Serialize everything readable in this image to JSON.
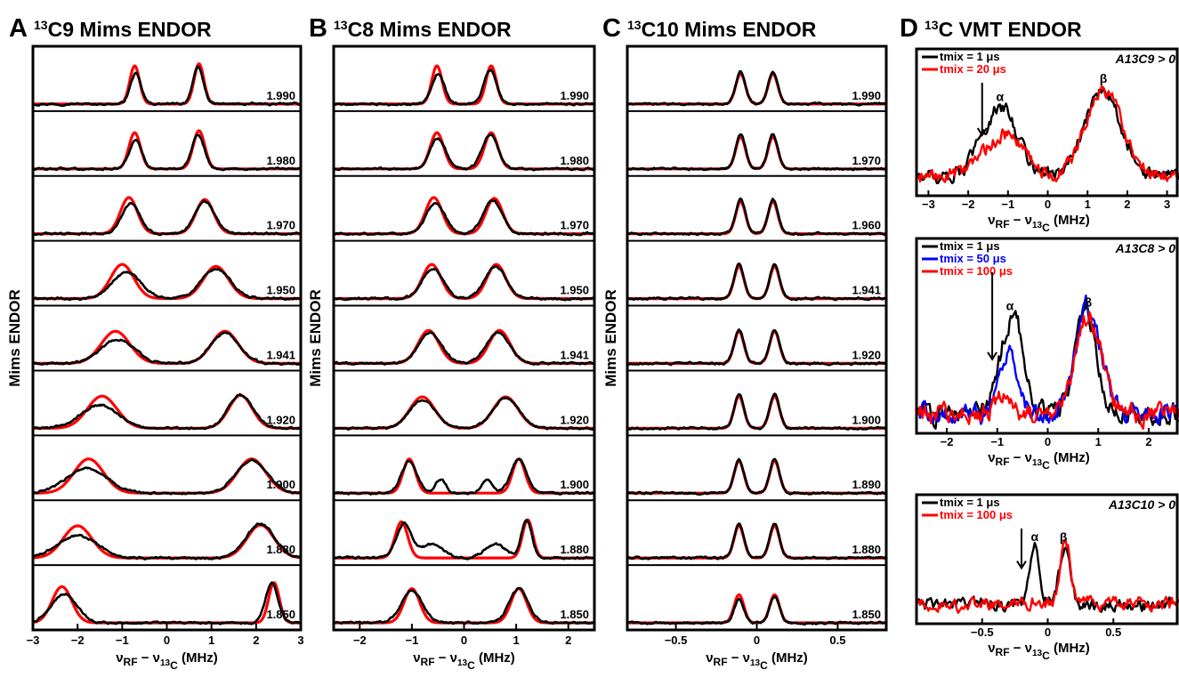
{
  "figure": {
    "colors": {
      "black": "#000000",
      "red": "#ff0000",
      "blue": "#0000ff"
    }
  },
  "chart_data": [
    {
      "type": "line",
      "panel_letter": "A",
      "title": "13C9 Mims ENDOR",
      "xlabel": "νRF − ν13C (MHz)",
      "ylabel": "Mims ENDOR",
      "xlim": [
        -3,
        3
      ],
      "xticks": [
        -3,
        -2,
        -1,
        0,
        1,
        2,
        3
      ],
      "trace_colors": [
        "black",
        "red"
      ],
      "traces": [
        {
          "g": "1.990",
          "peaks": [
            [
              -0.7,
              0.12,
              0.75
            ],
            [
              0.7,
              0.12,
              0.9
            ]
          ],
          "fit": [
            [
              -0.72,
              0.11,
              0.95
            ],
            [
              0.72,
              0.11,
              1.0
            ]
          ]
        },
        {
          "g": "1.980",
          "peaks": [
            [
              -0.7,
              0.14,
              0.7
            ],
            [
              0.7,
              0.14,
              0.85
            ]
          ],
          "fit": [
            [
              -0.72,
              0.13,
              0.9
            ],
            [
              0.72,
              0.13,
              0.95
            ]
          ]
        },
        {
          "g": "1.970",
          "peaks": [
            [
              -0.8,
              0.2,
              0.75
            ],
            [
              0.85,
              0.22,
              0.8
            ]
          ],
          "fit": [
            [
              -0.85,
              0.19,
              0.9
            ],
            [
              0.85,
              0.2,
              0.85
            ]
          ]
        },
        {
          "g": "1.950",
          "peaks": [
            [
              -0.9,
              0.32,
              0.65
            ],
            [
              1.1,
              0.32,
              0.75
            ]
          ],
          "fit": [
            [
              -1.0,
              0.26,
              0.85
            ],
            [
              1.1,
              0.28,
              0.8
            ]
          ]
        },
        {
          "g": "1.941",
          "peaks": [
            [
              -1.1,
              0.38,
              0.6
            ],
            [
              1.3,
              0.32,
              0.75
            ]
          ],
          "fit": [
            [
              -1.15,
              0.32,
              0.8
            ],
            [
              1.3,
              0.3,
              0.8
            ]
          ]
        },
        {
          "g": "1.920",
          "peaks": [
            [
              -1.5,
              0.42,
              0.58
            ],
            [
              1.65,
              0.28,
              0.82
            ]
          ],
          "fit": [
            [
              -1.45,
              0.33,
              0.8
            ],
            [
              1.65,
              0.26,
              0.82
            ]
          ]
        },
        {
          "g": "1.900",
          "peaks": [
            [
              -1.8,
              0.45,
              0.62
            ],
            [
              1.9,
              0.35,
              0.8
            ]
          ],
          "fit": [
            [
              -1.75,
              0.33,
              0.85
            ],
            [
              1.9,
              0.32,
              0.85
            ]
          ]
        },
        {
          "g": "1.880",
          "peaks": [
            [
              -2.0,
              0.45,
              0.55
            ],
            [
              2.1,
              0.32,
              0.85
            ]
          ],
          "fit": [
            [
              -2.0,
              0.32,
              0.8
            ],
            [
              2.1,
              0.3,
              0.82
            ]
          ]
        },
        {
          "g": "1.850",
          "peaks": [
            [
              -2.3,
              0.28,
              0.72
            ],
            [
              2.35,
              0.14,
              1.0
            ]
          ],
          "fit": [
            [
              -2.35,
              0.22,
              0.9
            ],
            [
              2.4,
              0.12,
              1.0
            ]
          ]
        }
      ]
    },
    {
      "type": "line",
      "panel_letter": "B",
      "title": "13C8 Mims ENDOR",
      "xlabel": "νRF − ν13C (MHz)",
      "ylabel": "Mims ENDOR",
      "xlim": [
        -2.5,
        2.5
      ],
      "xticks": [
        -2,
        -1,
        0,
        1,
        2
      ],
      "trace_colors": [
        "black",
        "red"
      ],
      "traces": [
        {
          "g": "1.990",
          "peaks": [
            [
              -0.5,
              0.12,
              0.75
            ],
            [
              0.5,
              0.12,
              0.85
            ]
          ],
          "fit": [
            [
              -0.52,
              0.1,
              0.95
            ],
            [
              0.52,
              0.1,
              0.95
            ]
          ]
        },
        {
          "g": "1.980",
          "peaks": [
            [
              -0.5,
              0.15,
              0.75
            ],
            [
              0.5,
              0.15,
              0.85
            ]
          ],
          "fit": [
            [
              -0.52,
              0.13,
              0.9
            ],
            [
              0.52,
              0.13,
              0.9
            ]
          ]
        },
        {
          "g": "1.970",
          "peaks": [
            [
              -0.55,
              0.18,
              0.75
            ],
            [
              0.55,
              0.18,
              0.82
            ]
          ],
          "fit": [
            [
              -0.58,
              0.16,
              0.9
            ],
            [
              0.58,
              0.16,
              0.88
            ]
          ]
        },
        {
          "g": "1.950",
          "peaks": [
            [
              -0.6,
              0.2,
              0.75
            ],
            [
              0.6,
              0.2,
              0.8
            ]
          ],
          "fit": [
            [
              -0.62,
              0.18,
              0.85
            ],
            [
              0.62,
              0.18,
              0.85
            ]
          ]
        },
        {
          "g": "1.941",
          "peaks": [
            [
              -0.65,
              0.22,
              0.75
            ],
            [
              0.65,
              0.22,
              0.78
            ]
          ],
          "fit": [
            [
              -0.68,
              0.2,
              0.82
            ],
            [
              0.68,
              0.2,
              0.82
            ]
          ]
        },
        {
          "g": "1.920",
          "peaks": [
            [
              -0.8,
              0.25,
              0.7
            ],
            [
              0.8,
              0.25,
              0.75
            ]
          ],
          "fit": [
            [
              -0.8,
              0.24,
              0.78
            ],
            [
              0.8,
              0.24,
              0.78
            ]
          ]
        },
        {
          "g": "1.900",
          "peaks": [
            [
              -1.05,
              0.15,
              0.8
            ],
            [
              -0.45,
              0.1,
              0.35
            ],
            [
              0.45,
              0.1,
              0.35
            ],
            [
              1.05,
              0.15,
              0.85
            ]
          ],
          "fit": [
            [
              -1.05,
              0.12,
              0.85
            ],
            [
              1.05,
              0.12,
              0.85
            ]
          ]
        },
        {
          "g": "1.880",
          "peaks": [
            [
              -1.15,
              0.15,
              0.85
            ],
            [
              -0.6,
              0.2,
              0.35
            ],
            [
              0.6,
              0.2,
              0.35
            ],
            [
              1.2,
              0.1,
              0.95
            ]
          ],
          "fit": [
            [
              -1.2,
              0.12,
              0.9
            ],
            [
              1.22,
              0.1,
              0.95
            ]
          ]
        },
        {
          "g": "1.850",
          "peaks": [
            [
              -1.0,
              0.2,
              0.8
            ],
            [
              1.05,
              0.18,
              0.85
            ]
          ],
          "fit": [
            [
              -1.0,
              0.15,
              0.85
            ],
            [
              1.05,
              0.15,
              0.85
            ]
          ]
        }
      ]
    },
    {
      "type": "line",
      "panel_letter": "C",
      "title": "13C10 Mims ENDOR",
      "xlabel": "νRF − ν13C (MHz)",
      "ylabel": "Mims ENDOR",
      "xlim": [
        -0.8,
        0.8
      ],
      "xticks": [
        -0.5,
        0,
        0.5
      ],
      "trace_colors": [
        "black",
        "red"
      ],
      "traces": [
        {
          "g": "1.990",
          "peaks": [
            [
              -0.1,
              0.03,
              0.8
            ],
            [
              0.1,
              0.03,
              0.8
            ]
          ],
          "fit": [
            [
              -0.1,
              0.03,
              0.75
            ],
            [
              0.1,
              0.03,
              0.75
            ]
          ]
        },
        {
          "g": "1.970",
          "peaks": [
            [
              -0.1,
              0.03,
              0.85
            ],
            [
              0.1,
              0.03,
              0.85
            ]
          ],
          "fit": [
            [
              -0.1,
              0.03,
              0.8
            ],
            [
              0.1,
              0.03,
              0.8
            ]
          ]
        },
        {
          "g": "1.960",
          "peaks": [
            [
              -0.1,
              0.03,
              0.85
            ],
            [
              0.1,
              0.03,
              0.85
            ]
          ],
          "fit": [
            [
              -0.1,
              0.03,
              0.8
            ],
            [
              0.1,
              0.03,
              0.8
            ]
          ]
        },
        {
          "g": "1.941",
          "peaks": [
            [
              -0.11,
              0.03,
              0.85
            ],
            [
              0.11,
              0.03,
              0.85
            ]
          ],
          "fit": [
            [
              -0.11,
              0.03,
              0.8
            ],
            [
              0.11,
              0.03,
              0.8
            ]
          ]
        },
        {
          "g": "1.920",
          "peaks": [
            [
              -0.11,
              0.03,
              0.85
            ],
            [
              0.11,
              0.03,
              0.85
            ]
          ],
          "fit": [
            [
              -0.11,
              0.03,
              0.8
            ],
            [
              0.11,
              0.03,
              0.8
            ]
          ]
        },
        {
          "g": "1.900",
          "peaks": [
            [
              -0.11,
              0.03,
              0.85
            ],
            [
              0.11,
              0.03,
              0.85
            ]
          ],
          "fit": [
            [
              -0.11,
              0.03,
              0.8
            ],
            [
              0.11,
              0.03,
              0.8
            ]
          ]
        },
        {
          "g": "1.890",
          "peaks": [
            [
              -0.11,
              0.03,
              0.85
            ],
            [
              0.11,
              0.03,
              0.85
            ]
          ],
          "fit": [
            [
              -0.11,
              0.03,
              0.8
            ],
            [
              0.11,
              0.03,
              0.8
            ]
          ]
        },
        {
          "g": "1.880",
          "peaks": [
            [
              -0.11,
              0.03,
              0.85
            ],
            [
              0.11,
              0.03,
              0.85
            ]
          ],
          "fit": [
            [
              -0.11,
              0.03,
              0.8
            ],
            [
              0.11,
              0.03,
              0.8
            ]
          ]
        },
        {
          "g": "1.850",
          "peaks": [
            [
              -0.11,
              0.03,
              0.6
            ],
            [
              0.11,
              0.03,
              0.65
            ]
          ],
          "fit": [
            [
              -0.11,
              0.03,
              0.7
            ],
            [
              0.11,
              0.03,
              0.7
            ]
          ]
        }
      ]
    },
    {
      "type": "line",
      "panel_letter": "D",
      "title": "13C VMT ENDOR",
      "subplots": [
        {
          "xlim": [
            -3.3,
            3.3
          ],
          "xticks": [
            -3,
            -2,
            -1,
            0,
            1,
            2,
            3
          ],
          "xlabel": "νRF − ν13C (MHz)",
          "sign_label": "A13C9 > 0",
          "alpha_label": "α",
          "alpha_x": -1.2,
          "beta_label": "β",
          "beta_x": 1.4,
          "arrow_x": -1.65,
          "legend": [
            {
              "label": "tmix = 1 μs",
              "color": "black"
            },
            {
              "label": "tmix = 20 μs",
              "color": "red"
            }
          ],
          "series": [
            {
              "name": "tmix = 1 μs",
              "color": "black",
              "peaks": [
                [
                  -1.2,
                  0.45,
                  0.75
                ],
                [
                  1.4,
                  0.45,
                  0.95
                ]
              ]
            },
            {
              "name": "tmix = 20 μs",
              "color": "red",
              "peaks": [
                [
                  -1.1,
                  0.5,
                  0.45
                ],
                [
                  1.4,
                  0.45,
                  0.95
                ]
              ]
            }
          ]
        },
        {
          "xlim": [
            -2.6,
            2.6
          ],
          "xticks": [
            -2,
            -1,
            0,
            1,
            2
          ],
          "xlabel": "νRF − ν13C (MHz)",
          "sign_label": "A13C8 > 0",
          "alpha_label": "α",
          "alpha_x": -0.75,
          "beta_label": "β",
          "beta_x": 0.8,
          "arrow_x": -1.1,
          "legend": [
            {
              "label": "tmix = 1 μs",
              "color": "black"
            },
            {
              "label": "tmix = 50 μs",
              "color": "blue"
            },
            {
              "label": "tmix = 100 μs",
              "color": "red"
            }
          ],
          "series": [
            {
              "name": "tmix = 1 μs",
              "color": "black",
              "peaks": [
                [
                  -0.7,
                  0.22,
                  0.82
                ],
                [
                  0.75,
                  0.22,
                  0.85
                ]
              ]
            },
            {
              "name": "tmix = 50 μs",
              "color": "blue",
              "peaks": [
                [
                  -0.8,
                  0.18,
                  0.5
                ],
                [
                  0.8,
                  0.25,
                  0.88
                ]
              ]
            },
            {
              "name": "tmix = 100 μs",
              "color": "red",
              "peaks": [
                [
                  -0.85,
                  0.15,
                  0.18
                ],
                [
                  0.8,
                  0.25,
                  0.82
                ]
              ]
            }
          ]
        },
        {
          "xlim": [
            -1.0,
            1.0
          ],
          "xticks": [
            -0.5,
            0,
            0.5
          ],
          "xlabel": "νRF − ν13C (MHz)",
          "sign_label": "A13C10 > 0",
          "alpha_label": "α",
          "alpha_x": -0.1,
          "beta_label": "β",
          "beta_x": 0.12,
          "arrow_x": -0.2,
          "legend": [
            {
              "label": "tmix = 1 μs",
              "color": "black"
            },
            {
              "label": "tmix = 100 μs",
              "color": "red"
            }
          ],
          "series": [
            {
              "name": "tmix = 1 μs",
              "color": "black",
              "peaks": [
                [
                  -0.1,
                  0.04,
                  0.7
                ],
                [
                  0.13,
                  0.04,
                  0.72
                ]
              ]
            },
            {
              "name": "tmix = 100 μs",
              "color": "red",
              "peaks": [
                [
                  -0.1,
                  0.04,
                  0.05
                ],
                [
                  0.14,
                  0.04,
                  0.75
                ]
              ]
            }
          ]
        }
      ]
    }
  ]
}
